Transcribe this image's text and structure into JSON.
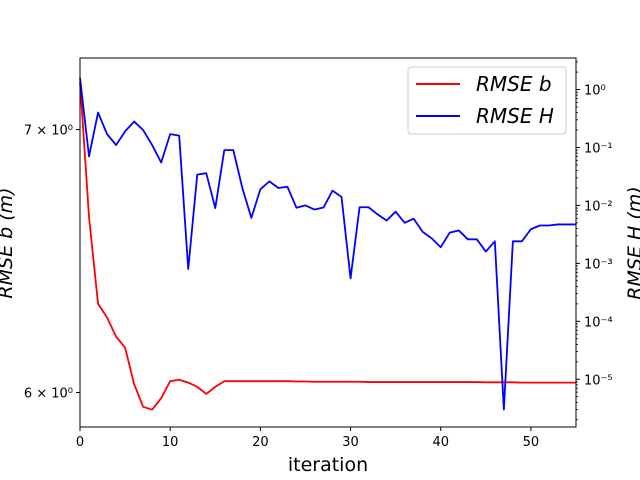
{
  "chart_data": {
    "type": "line",
    "xlabel": "iteration",
    "ylabel_left": "RMSE b (m)",
    "ylabel_right": "RMSE H (m)",
    "xlim": [
      0,
      55
    ],
    "x_ticks": [
      0,
      10,
      20,
      30,
      40,
      50
    ],
    "ylim_left": [
      5.88,
      7.3
    ],
    "left_scale": "log",
    "left_ticks": [
      {
        "value": 6,
        "label": "6 × 10⁰"
      },
      {
        "value": 7,
        "label": "7 × 10⁰"
      }
    ],
    "ylim_right": [
      1.5e-06,
      3.5
    ],
    "right_scale": "log",
    "right_ticks": [
      {
        "value": 1e-05,
        "label": "10⁻⁵"
      },
      {
        "value": 0.0001,
        "label": "10⁻⁴"
      },
      {
        "value": 0.001,
        "label": "10⁻³"
      },
      {
        "value": 0.01,
        "label": "10⁻²"
      },
      {
        "value": 0.1,
        "label": "10⁻¹"
      },
      {
        "value": 1,
        "label": "10⁰"
      }
    ],
    "legend": {
      "position": "top-right",
      "entries": [
        "RMSE b",
        "RMSE H"
      ]
    },
    "series": [
      {
        "name": "RMSE b",
        "axis": "left",
        "color": "#ff0000",
        "x": [
          0,
          1,
          2,
          3,
          4,
          5,
          6,
          7,
          8,
          9,
          10,
          11,
          12,
          13,
          14,
          15,
          16,
          17,
          18,
          19,
          20,
          21,
          22,
          23,
          24,
          25,
          26,
          27,
          28,
          29,
          30,
          31,
          32,
          33,
          34,
          35,
          36,
          37,
          38,
          39,
          40,
          41,
          42,
          43,
          44,
          45,
          46,
          47,
          48,
          49,
          50,
          51,
          52,
          53,
          54,
          55
        ],
        "values": [
          7.2,
          6.65,
          6.32,
          6.27,
          6.2,
          6.16,
          6.03,
          5.95,
          5.94,
          5.98,
          6.04,
          6.045,
          6.035,
          6.02,
          5.995,
          6.02,
          6.04,
          6.04,
          6.04,
          6.04,
          6.04,
          6.04,
          6.04,
          6.04,
          6.039,
          6.039,
          6.038,
          6.038,
          6.038,
          6.038,
          6.038,
          6.038,
          6.037,
          6.037,
          6.037,
          6.037,
          6.037,
          6.037,
          6.037,
          6.037,
          6.037,
          6.037,
          6.037,
          6.037,
          6.037,
          6.036,
          6.036,
          6.036,
          6.036,
          6.035,
          6.035,
          6.035,
          6.035,
          6.035,
          6.035,
          6.035
        ]
      },
      {
        "name": "RMSE H",
        "axis": "right",
        "color": "#0000ff",
        "x": [
          0,
          1,
          2,
          3,
          4,
          5,
          6,
          7,
          8,
          9,
          10,
          11,
          12,
          13,
          14,
          15,
          16,
          17,
          18,
          19,
          20,
          21,
          22,
          23,
          24,
          25,
          26,
          27,
          28,
          29,
          30,
          31,
          32,
          33,
          34,
          35,
          36,
          37,
          38,
          39,
          40,
          41,
          42,
          43,
          44,
          45,
          46,
          47,
          48,
          49,
          50,
          51,
          52,
          53,
          54,
          55
        ],
        "values": [
          1.6,
          0.07,
          0.4,
          0.17,
          0.11,
          0.19,
          0.28,
          0.2,
          0.11,
          0.055,
          0.17,
          0.16,
          0.0008,
          0.034,
          0.036,
          0.009,
          0.09,
          0.09,
          0.02,
          0.0061,
          0.019,
          0.026,
          0.02,
          0.021,
          0.0091,
          0.01,
          0.0085,
          0.0092,
          0.018,
          0.014,
          0.00055,
          0.0093,
          0.0093,
          0.007,
          0.0055,
          0.0078,
          0.005,
          0.0059,
          0.0035,
          0.0027,
          0.0019,
          0.0034,
          0.0037,
          0.0026,
          0.0026,
          0.0016,
          0.0024,
          3e-06,
          0.0024,
          0.0024,
          0.0039,
          0.0045,
          0.0045,
          0.0047,
          0.0047,
          0.0047
        ]
      }
    ]
  }
}
